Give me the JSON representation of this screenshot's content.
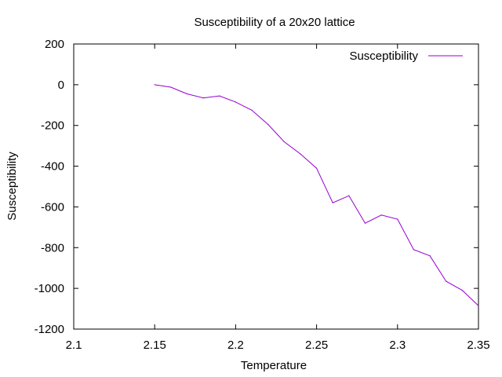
{
  "chart_data": {
    "type": "line",
    "title": "Susceptibility of a 20x20 lattice",
    "xlabel": "Temperature",
    "ylabel": "Susceptibility",
    "xlim": [
      2.1,
      2.35
    ],
    "ylim": [
      -1200,
      200
    ],
    "xticks": [
      2.1,
      2.15,
      2.2,
      2.25,
      2.3,
      2.35
    ],
    "xtick_labels": [
      "2.1",
      "2.15",
      "2.2",
      "2.25",
      "2.3",
      "2.35"
    ],
    "yticks": [
      -1200,
      -1000,
      -800,
      -600,
      -400,
      -200,
      0,
      200
    ],
    "ytick_labels": [
      "-1200",
      "-1000",
      "-800",
      "-600",
      "-400",
      "-200",
      "0",
      "200"
    ],
    "grid": false,
    "legend_position": "top-right",
    "series": [
      {
        "name": "Susceptibility",
        "color": "#9400d3",
        "x": [
          2.15,
          2.16,
          2.17,
          2.18,
          2.19,
          2.2,
          2.21,
          2.22,
          2.23,
          2.24,
          2.25,
          2.26,
          2.27,
          2.28,
          2.29,
          2.3,
          2.31,
          2.32,
          2.33,
          2.34,
          2.35
        ],
        "y": [
          0,
          -12,
          -45,
          -65,
          -55,
          -85,
          -125,
          -195,
          -280,
          -340,
          -410,
          -580,
          -545,
          -680,
          -640,
          -660,
          -810,
          -840,
          -965,
          -1010,
          -1085
        ]
      }
    ]
  }
}
